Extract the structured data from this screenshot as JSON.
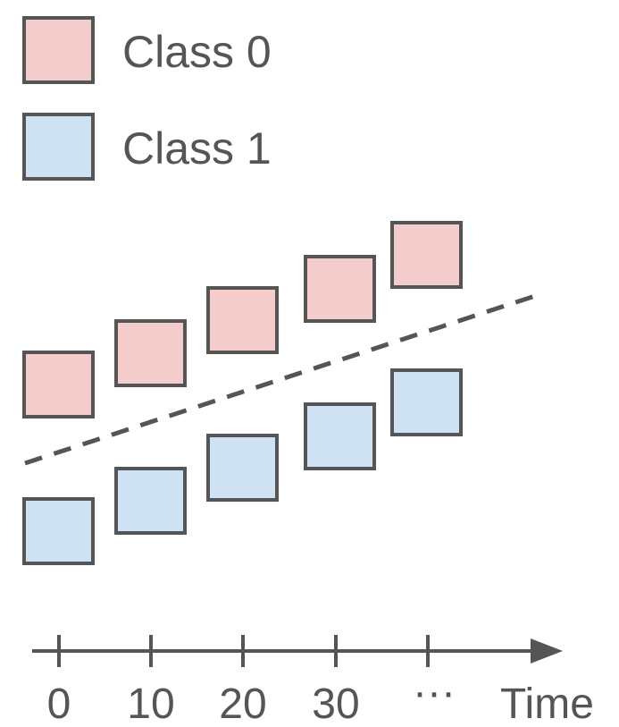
{
  "colors": {
    "class0_fill": "#f4cccc",
    "class1_fill": "#cfe2f3",
    "stroke": "#555555"
  },
  "legend": {
    "class0_label": "Class 0",
    "class1_label": "Class 1"
  },
  "axis": {
    "tick_labels": [
      "0",
      "10",
      "20",
      "30",
      "···"
    ],
    "title": "Time"
  },
  "series": {
    "class0_points": 5,
    "class1_points": 5
  }
}
